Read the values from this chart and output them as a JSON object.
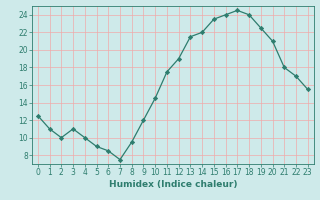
{
  "x": [
    0,
    1,
    2,
    3,
    4,
    5,
    6,
    7,
    8,
    9,
    10,
    11,
    12,
    13,
    14,
    15,
    16,
    17,
    18,
    19,
    20,
    21,
    22,
    23
  ],
  "y": [
    12.5,
    11.0,
    10.0,
    11.0,
    10.0,
    9.0,
    8.5,
    7.5,
    9.5,
    12.0,
    14.5,
    17.5,
    19.0,
    21.5,
    22.0,
    23.5,
    24.0,
    24.5,
    24.0,
    22.5,
    21.0,
    18.0,
    17.0,
    15.5
  ],
  "line_color": "#2e7d6e",
  "marker": "D",
  "marker_size": 2.2,
  "bg_color": "#ceeaea",
  "grid_color": "#f0aaaa",
  "axis_color": "#2e7d6e",
  "xlabel": "Humidex (Indice chaleur)",
  "xlim": [
    -0.5,
    23.5
  ],
  "ylim": [
    7,
    25
  ],
  "yticks": [
    8,
    10,
    12,
    14,
    16,
    18,
    20,
    22,
    24
  ],
  "xticks": [
    0,
    1,
    2,
    3,
    4,
    5,
    6,
    7,
    8,
    9,
    10,
    11,
    12,
    13,
    14,
    15,
    16,
    17,
    18,
    19,
    20,
    21,
    22,
    23
  ],
  "tick_font_size": 5.5,
  "label_font_size": 6.5,
  "line_width": 0.9
}
